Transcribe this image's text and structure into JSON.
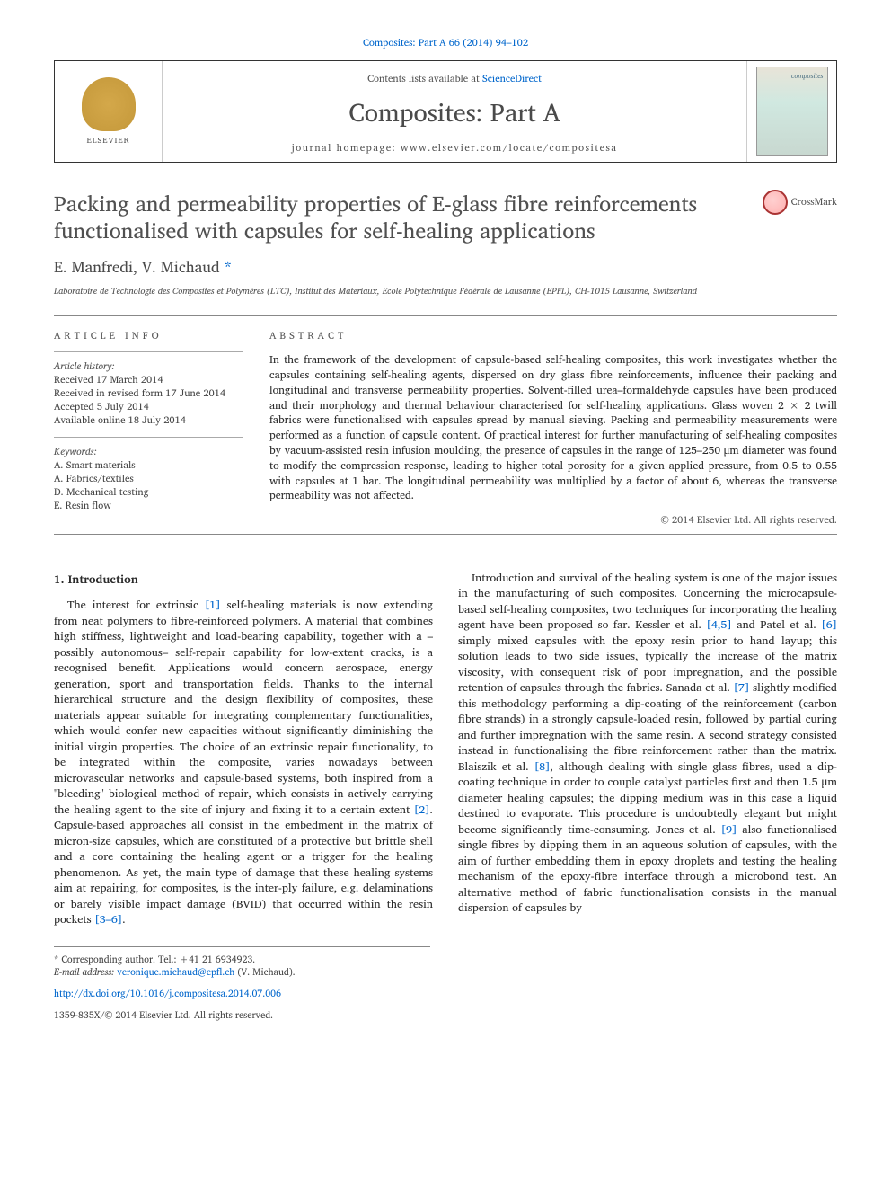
{
  "top_link": "Composites: Part A 66 (2014) 94–102",
  "header": {
    "contents_prefix": "Contents lists available at ",
    "contents_link": "ScienceDirect",
    "journal_name": "Composites: Part A",
    "homepage_prefix": "journal homepage: ",
    "homepage_url": "www.elsevier.com/locate/compositesa",
    "elsevier_label": "ELSEVIER",
    "cover_label": "composites"
  },
  "title": "Packing and permeability properties of E-glass fibre reinforcements functionalised with capsules for self-healing applications",
  "crossmark_label": "CrossMark",
  "authors_html": "E. Manfredi, V. Michaud",
  "corr_mark": "*",
  "affiliation": "Laboratoire de Technologie des Composites et Polymères (LTC), Institut des Materiaux, Ecole Polytechnique Fédérale de Lausanne (EPFL), CH-1015 Lausanne, Switzerland",
  "meta": {
    "info_heading": "article info",
    "history_label": "Article history:",
    "received": "Received 17 March 2014",
    "revised": "Received in revised form 17 June 2014",
    "accepted": "Accepted 5 July 2014",
    "online": "Available online 18 July 2014",
    "keywords_label": "Keywords:",
    "kw1": "A. Smart materials",
    "kw2": "A. Fabrics/textiles",
    "kw3": "D. Mechanical testing",
    "kw4": "E. Resin flow"
  },
  "abstract": {
    "heading": "abstract",
    "text": "In the framework of the development of capsule-based self-healing composites, this work investigates whether the capsules containing self-healing agents, dispersed on dry glass fibre reinforcements, influence their packing and longitudinal and transverse permeability properties. Solvent-filled urea–formaldehyde capsules have been produced and their morphology and thermal behaviour characterised for self-healing applications. Glass woven 2 × 2 twill fabrics were functionalised with capsules spread by manual sieving. Packing and permeability measurements were performed as a function of capsule content. Of practical interest for further manufacturing of self-healing composites by vacuum-assisted resin infusion moulding, the presence of capsules in the range of 125–250 μm diameter was found to modify the compression response, leading to higher total porosity for a given applied pressure, from 0.5 to 0.55 with capsules at 1 bar. The longitudinal permeability was multiplied by a factor of about 6, whereas the transverse permeability was not affected.",
    "copyright": "© 2014 Elsevier Ltd. All rights reserved."
  },
  "body": {
    "section_heading": "1. Introduction",
    "p1a": "The interest for extrinsic ",
    "c1": "[1]",
    "p1b": " self-healing materials is now extending from neat polymers to fibre-reinforced polymers. A material that combines high stiffness, lightweight and load-bearing capability, together with a –possibly autonomous– self-repair capability for low-extent cracks, is a recognised benefit. Applications would concern aerospace, energy generation, sport and transportation fields. Thanks to the internal hierarchical structure and the design flexibility of composites, these materials appear suitable for integrating complementary functionalities, which would confer new capacities without significantly diminishing the initial virgin properties. The choice of an extrinsic repair functionality, to be integrated within the composite, varies nowadays between microvascular networks and capsule-based systems, both inspired from a \"bleeding\" biological method of repair, which consists in actively carrying the healing agent to the site of injury and fixing it to a certain extent ",
    "c2": "[2]",
    "p1c": ". Capsule-based approaches all consist in the embedment in the matrix of micron-size capsules, which are constituted of a protective but brittle shell and a core containing the healing agent or a trigger for the healing phenomenon. As yet, the main type of damage that these healing systems aim at repairing, for composites, is the inter-ply failure, e.g. delaminations or barely ",
    "p2a": "visible impact damage (BVID) that occurred within the resin pockets ",
    "c3": "[3–6]",
    "p2b": ".",
    "p3a": "Introduction and survival of the healing system is one of the major issues in the manufacturing of such composites. Concerning the microcapsule-based self-healing composites, two techniques for incorporating the healing agent have been proposed so far. Kessler et al. ",
    "c4": "[4,5]",
    "p3b": " and Patel et al. ",
    "c5": "[6]",
    "p3c": " simply mixed capsules with the epoxy resin prior to hand layup; this solution leads to two side issues, typically the increase of the matrix viscosity, with consequent risk of poor impregnation, and the possible retention of capsules through the fabrics. Sanada et al. ",
    "c6": "[7]",
    "p3d": " slightly modified this methodology performing a dip-coating of the reinforcement (carbon fibre strands) in a strongly capsule-loaded resin, followed by partial curing and further impregnation with the same resin. A second strategy consisted instead in functionalising the fibre reinforcement rather than the matrix. Blaiszik et al. ",
    "c7": "[8]",
    "p3e": ", although dealing with single glass fibres, used a dip-coating technique in order to couple catalyst particles first and then 1.5 μm diameter healing capsules; the dipping medium was in this case a liquid destined to evaporate. This procedure is undoubtedly elegant but might become significantly time-consuming. Jones et al. ",
    "c8": "[9]",
    "p3f": " also functionalised single fibres by dipping them in an aqueous solution of capsules, with the aim of further embedding them in epoxy droplets and testing the healing mechanism of the epoxy-fibre interface through a microbond test. An alternative method of fabric functionalisation consists in the manual dispersion of capsules by"
  },
  "footnote": {
    "corr": "* Corresponding author. Tel.: +41 21 6934923.",
    "email_label": "E-mail address: ",
    "email": "veronique.michaud@epfl.ch",
    "email_suffix": " (V. Michaud)."
  },
  "bottom": {
    "doi": "http://dx.doi.org/10.1016/j.compositesa.2014.07.006",
    "issn_copyright": "1359-835X/© 2014 Elsevier Ltd. All rights reserved."
  },
  "colors": {
    "link": "#0066cc",
    "text": "#2a2a2a",
    "muted": "#555555",
    "border": "#888888"
  }
}
